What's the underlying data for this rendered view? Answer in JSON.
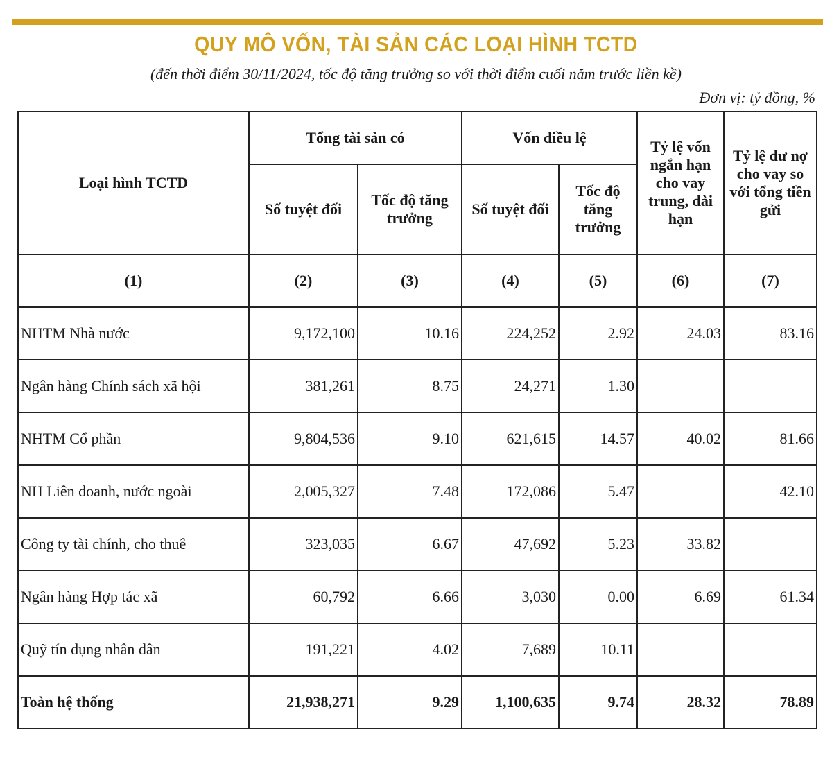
{
  "header": {
    "title": "QUY MÔ VỐN, TÀI SẢN CÁC LOẠI HÌNH TCTD",
    "subtitle": "(đến thời điểm 30/11/2024, tốc độ tăng trưởng so với thời điểm cuối năm trước liền kề)",
    "unit": "Đơn vị: tỷ đồng, %",
    "accent_color": "#d4a11e"
  },
  "table": {
    "col_type": "Loại hình TCTD",
    "group_assets": "Tổng tài sản có",
    "group_capital": "Vốn điều lệ",
    "col_abs": "Số tuyệt đối",
    "col_growth_1": "Tốc độ tăng trưởng",
    "col_abs_2": "Số tuyệt đối",
    "col_growth_2": "Tốc độ tăng trưởng",
    "col_ratio_short": "Tỷ lệ vốn ngắn hạn cho vay trung, dài hạn",
    "col_ratio_loan": "Tỷ lệ dư nợ cho vay so với tổng tiền gửi",
    "index": [
      "(1)",
      "(2)",
      "(3)",
      "(4)",
      "(5)",
      "(6)",
      "(7)"
    ],
    "rows": [
      [
        "NHTM Nhà nước",
        "9,172,100",
        "10.16",
        "224,252",
        "2.92",
        "24.03",
        "83.16"
      ],
      [
        "Ngân hàng Chính sách xã hội",
        "381,261",
        "8.75",
        "24,271",
        "1.30",
        "",
        ""
      ],
      [
        "NHTM Cổ phần",
        "9,804,536",
        "9.10",
        "621,615",
        "14.57",
        "40.02",
        "81.66"
      ],
      [
        "NH Liên doanh, nước ngoài",
        "2,005,327",
        "7.48",
        "172,086",
        "5.47",
        "",
        "42.10"
      ],
      [
        "Công ty tài chính, cho thuê",
        "323,035",
        "6.67",
        "47,692",
        "5.23",
        "33.82",
        ""
      ],
      [
        "Ngân hàng Hợp tác xã",
        "60,792",
        "6.66",
        "3,030",
        "0.00",
        "6.69",
        "61.34"
      ],
      [
        "Quỹ tín dụng nhân dân",
        "191,221",
        "4.02",
        "7,689",
        "10.11",
        "",
        ""
      ]
    ],
    "total": [
      "Toàn hệ thống",
      "21,938,271",
      "9.29",
      "1,100,635",
      "9.74",
      "28.32",
      "78.89"
    ]
  }
}
